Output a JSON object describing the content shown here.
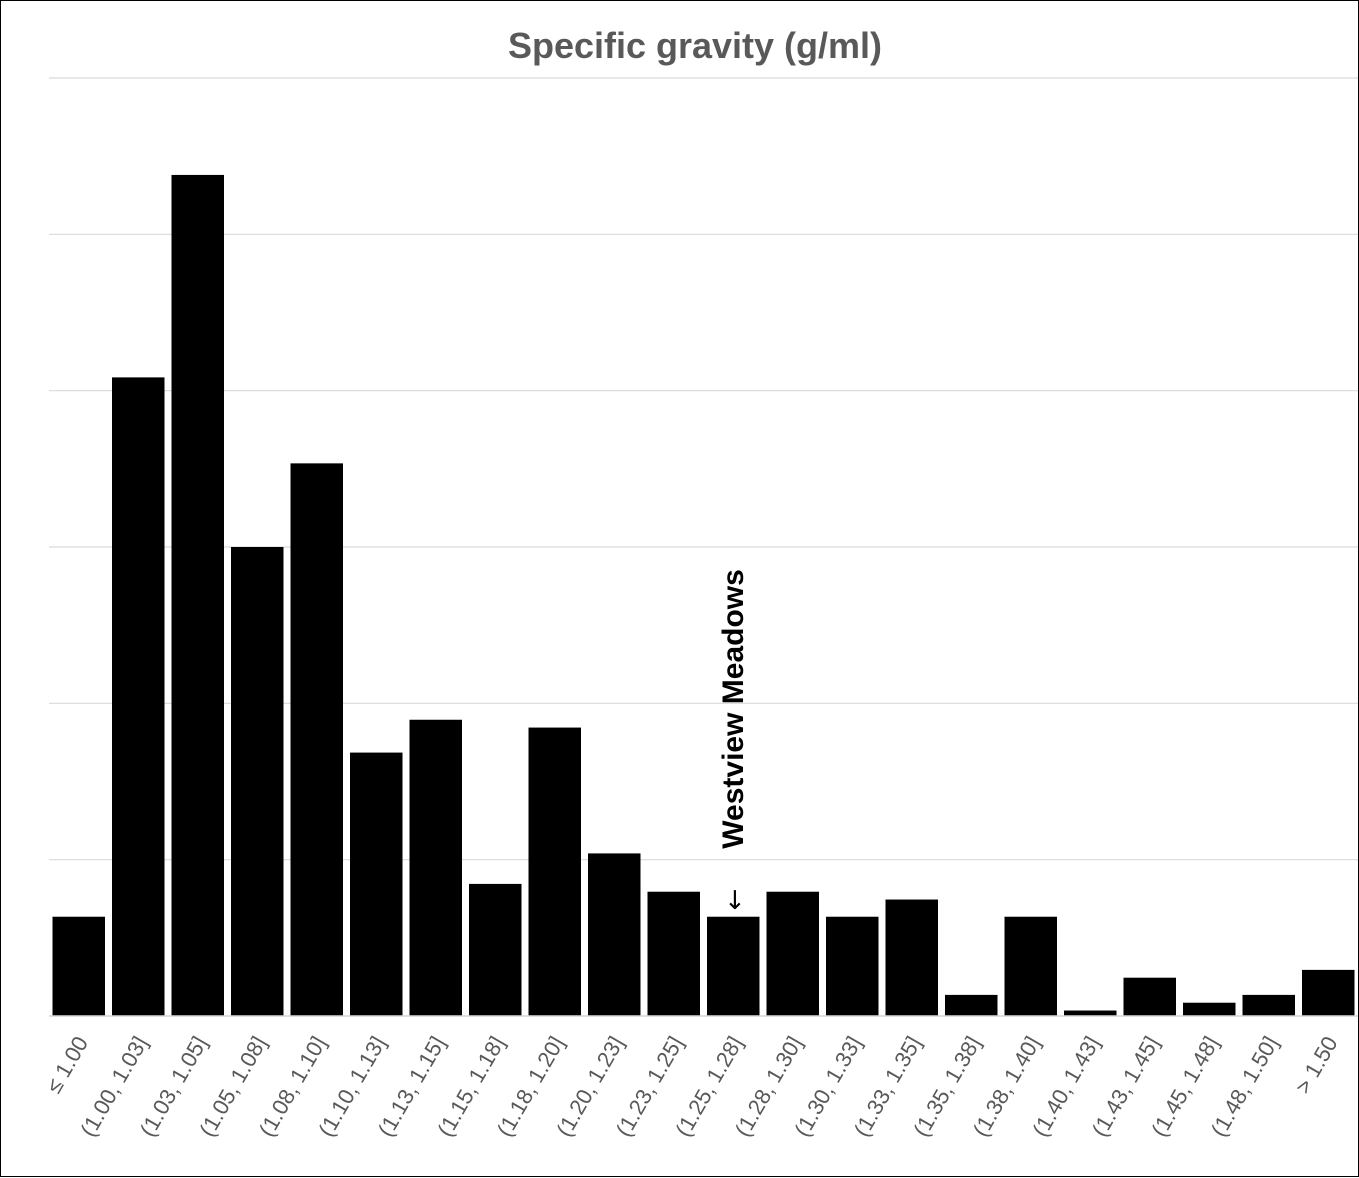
{
  "chart_data": {
    "type": "bar",
    "title": "Specific gravity (g/ml)",
    "xlabel": "",
    "ylabel": "",
    "categories": [
      "≤ 1.00",
      "(1.00, 1.03]",
      "(1.03, 1.05]",
      "(1.05, 1.08]",
      "(1.08, 1.10]",
      "(1.10, 1.13]",
      "(1.13, 1.15]",
      "(1.15, 1.18]",
      "(1.18, 1.20]",
      "(1.20, 1.23]",
      "(1.23, 1.25]",
      "(1.25, 1.28]",
      "(1.28, 1.30]",
      "(1.30, 1.33]",
      "(1.33, 1.35]",
      "(1.35, 1.38]",
      "(1.38, 1.40]",
      "(1.40, 1.43]",
      "(1.43, 1.45]",
      "(1.45, 1.48]",
      "(1.48, 1.50]",
      "> 1.50"
    ],
    "values": [
      1.27,
      8.17,
      10.76,
      6.0,
      7.07,
      3.37,
      3.79,
      1.69,
      3.69,
      2.08,
      1.59,
      1.27,
      1.59,
      1.27,
      1.49,
      0.27,
      1.27,
      0.07,
      0.49,
      0.17,
      0.27,
      0.59
    ],
    "ylim": [
      0,
      12
    ],
    "y_gridlines": [
      0,
      2,
      4,
      6,
      8,
      10,
      12
    ],
    "y_tick_labels_shown": false,
    "grid": true,
    "bar_color": "#000000",
    "gridline_color": "#d9d9d9",
    "annotation": {
      "category": "(1.25, 1.28]",
      "arrow": "←",
      "text": "Westview Meadows"
    }
  }
}
